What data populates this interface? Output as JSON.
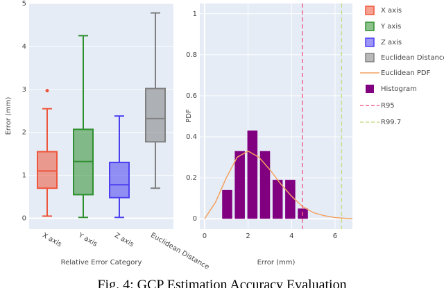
{
  "chart_data": [
    {
      "type": "box",
      "xlabel": "Relative Error Category",
      "ylabel": "Error (mm)",
      "categories": [
        "X axis",
        "Y axis",
        "Z axis",
        "Euclidean Distance"
      ],
      "series": [
        {
          "name": "X axis",
          "color": "#ef553b",
          "min": 0.05,
          "q1": 0.7,
          "median": 1.1,
          "q3": 1.55,
          "max": 2.55,
          "outliers": [
            2.97
          ]
        },
        {
          "name": "Y axis",
          "color": "#2f8f2f",
          "min": 0.02,
          "q1": 0.55,
          "median": 1.32,
          "q3": 2.07,
          "max": 4.25,
          "outliers": []
        },
        {
          "name": "Z axis",
          "color": "#4b3ff0",
          "min": 0.02,
          "q1": 0.48,
          "median": 0.78,
          "q3": 1.3,
          "max": 2.38,
          "outliers": []
        },
        {
          "name": "Euclidean Distance",
          "color": "#808080",
          "min": 0.7,
          "q1": 1.78,
          "median": 2.32,
          "q3": 3.02,
          "max": 4.78,
          "outliers": []
        }
      ],
      "ylim": [
        -0.25,
        5
      ],
      "yticks": [
        0,
        1,
        2,
        3,
        4,
        5
      ],
      "grid": true
    },
    {
      "type": "histogram",
      "xlabel": "Error (mm)",
      "ylabel": "PDF",
      "name": "Histogram",
      "color": "#800080",
      "bins": [
        0.75,
        1.33,
        1.91,
        2.49,
        3.07,
        3.65,
        4.23,
        4.81
      ],
      "values": [
        0.14,
        0.33,
        0.43,
        0.33,
        0.19,
        0.19,
        0.05
      ],
      "pdf": {
        "name": "Euclidean PDF",
        "color": "#f4a261",
        "x": [
          0,
          0.5,
          1,
          1.5,
          2,
          2.5,
          3,
          3.5,
          4,
          4.5,
          5,
          5.5,
          6,
          6.5,
          6.8
        ],
        "values": [
          0,
          0.08,
          0.2,
          0.3,
          0.33,
          0.3,
          0.24,
          0.17,
          0.11,
          0.06,
          0.03,
          0.015,
          0.006,
          0.002,
          0.001
        ]
      },
      "lines": [
        {
          "name": "R95",
          "x": 4.5,
          "color": "#f0648c"
        },
        {
          "name": "R99.7",
          "x": 6.3,
          "color": "#c5df8c"
        }
      ],
      "xlim": [
        -0.22,
        6.8
      ],
      "ylim": [
        -0.05,
        1.05
      ],
      "xticks": [
        0,
        2,
        4,
        6
      ],
      "yticks": [
        0,
        0.2,
        0.4,
        0.6,
        0.8,
        1
      ],
      "grid": true
    }
  ],
  "caption": "Fig. 4: GCP Estimation Accuracy Evaluation"
}
